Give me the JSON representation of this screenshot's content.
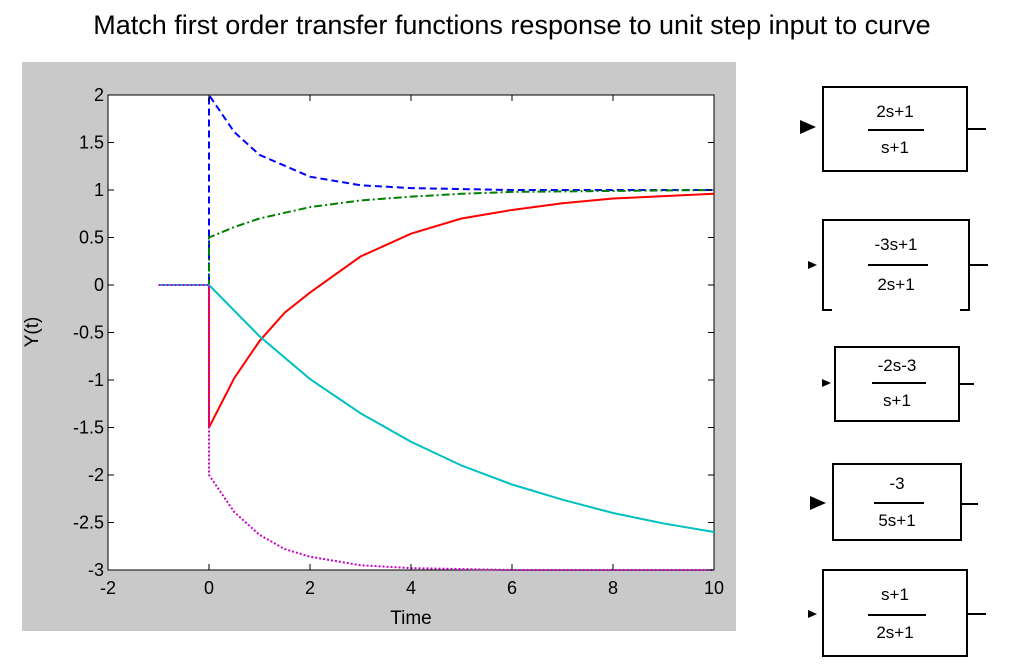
{
  "title": "Match first order transfer functions response to unit step input to curve",
  "chart_data": {
    "type": "line",
    "xlabel": "Time",
    "ylabel": "Y(t)",
    "xlim": [
      -2,
      10
    ],
    "ylim": [
      -3,
      2
    ],
    "xticks": [
      "-2",
      "0",
      "2",
      "4",
      "6",
      "8",
      "10"
    ],
    "yticks": [
      "2",
      "1.5",
      "1",
      "0.5",
      "0",
      "-0.5",
      "-1",
      "-1.5",
      "-2",
      "-2.5",
      "-3"
    ],
    "grid": false,
    "series": [
      {
        "color": "#0000ff",
        "style": "dashed",
        "x": [
          -1,
          0,
          0,
          0.5,
          1,
          2,
          3,
          4,
          5,
          6,
          8,
          10
        ],
        "y": [
          0,
          0,
          2,
          1.61,
          1.37,
          1.14,
          1.05,
          1.02,
          1.01,
          1.0,
          1.0,
          1.0
        ]
      },
      {
        "color": "#008000",
        "style": "dashdot",
        "x": [
          -1,
          0,
          0,
          0.5,
          1,
          2,
          3,
          4,
          5,
          6,
          8,
          10
        ],
        "y": [
          0,
          0,
          0.5,
          0.61,
          0.7,
          0.82,
          0.89,
          0.93,
          0.96,
          0.98,
          0.99,
          1.0
        ]
      },
      {
        "color": "#ff0000",
        "style": "solid",
        "x": [
          -1,
          0,
          0,
          0.5,
          1,
          1.5,
          2,
          3,
          4,
          5,
          6,
          7,
          8,
          10
        ],
        "y": [
          0,
          0,
          -1.5,
          -0.98,
          -0.59,
          -0.29,
          -0.08,
          0.3,
          0.54,
          0.7,
          0.79,
          0.86,
          0.91,
          0.96
        ]
      },
      {
        "color": "#00c0c0",
        "style": "solid",
        "x": [
          -1,
          0,
          1,
          2,
          3,
          4,
          5,
          6,
          7,
          8,
          9,
          10
        ],
        "y": [
          0,
          0,
          -0.54,
          -0.99,
          -1.35,
          -1.65,
          -1.9,
          -2.1,
          -2.26,
          -2.4,
          -2.51,
          -2.6
        ]
      },
      {
        "color": "#cc00cc",
        "style": "dotted",
        "x": [
          -1,
          0,
          0,
          0.5,
          1,
          1.5,
          2,
          3,
          4,
          5,
          6,
          8,
          10
        ],
        "y": [
          0,
          0,
          -2,
          -2.39,
          -2.63,
          -2.78,
          -2.86,
          -2.95,
          -2.98,
          -2.99,
          -3.0,
          -3.0,
          -3.0
        ]
      }
    ]
  },
  "blocks": [
    {
      "num": "2s+1",
      "den": "s+1"
    },
    {
      "num": "-3s+1",
      "den": "2s+1"
    },
    {
      "num": "-2s-3",
      "den": "s+1"
    },
    {
      "num": "-3",
      "den": "5s+1"
    },
    {
      "num": "s+1",
      "den": "2s+1"
    }
  ]
}
